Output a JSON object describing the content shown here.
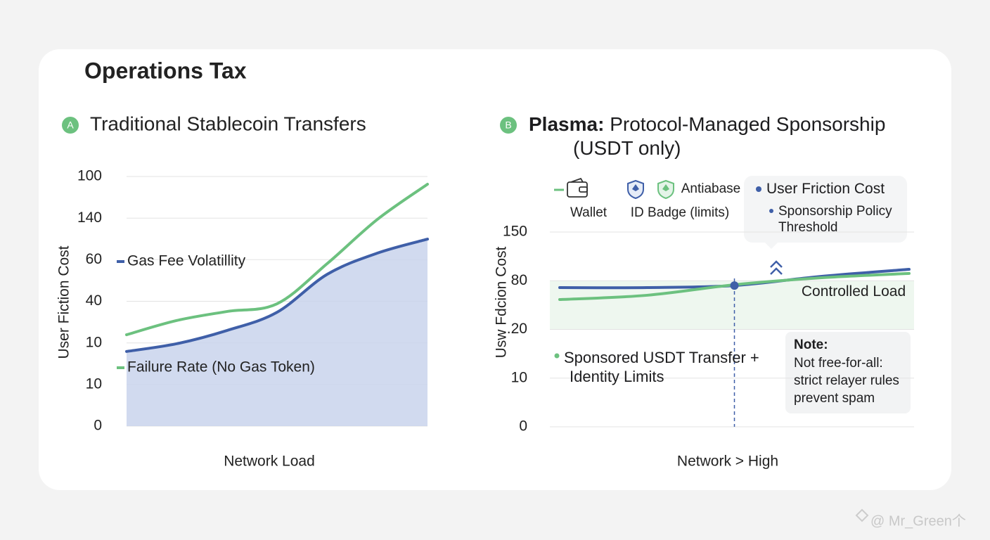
{
  "title": "Operations Tax",
  "watermark": "@ Mr_Green个",
  "chart_data": [
    {
      "type": "line",
      "badge": "A",
      "title": "Traditional Stablecoin Transfers",
      "ylabel": "User Fiction Cost",
      "xlabel": "Network Load",
      "categories": [
        null,
        null,
        null,
        null,
        null,
        null,
        null
      ],
      "ylim": [
        0,
        100
      ],
      "yticks": [
        100,
        {
          "value": 83.3,
          "label": "140"
        },
        {
          "value": 66.7,
          "label": "60"
        },
        {
          "value": 50,
          "label": "40"
        },
        {
          "value": 33.3,
          "label": "10"
        },
        {
          "value": 16.7,
          "label": "10"
        },
        0
      ],
      "grid": true,
      "series": [
        {
          "name": "Failure Rate (No Gas Token)",
          "color": "#6cc17f",
          "values": [
            36.6,
            42.3,
            45.9,
            49.0,
            65.1,
            82.8,
            96.9
          ]
        },
        {
          "name": "Gas Fee Volatillity",
          "color": "#3f5fa8",
          "area": true,
          "values": [
            29.9,
            33.0,
            38.3,
            45.6,
            60.8,
            69.3,
            74.9
          ]
        }
      ]
    },
    {
      "type": "line",
      "badge": "B",
      "title_bold": "Plasma:",
      "title": "Protocol-Managed Sponsorship (USDT only)",
      "ylabel": "Usw Fdcion Cost",
      "xlabel": "Network > High",
      "categories": [
        null,
        null,
        null,
        null,
        null
      ],
      "ylim": [
        0,
        150
      ],
      "yticks": [
        150,
        {
          "value": 112.5,
          "label": "80"
        },
        {
          "value": 75,
          "label": ".20"
        },
        {
          "value": 37.5,
          "label": "10"
        },
        0
      ],
      "grid": true,
      "legend_items": [
        "Wallet",
        "Antiabase",
        "ID Badge (limits)"
      ],
      "threshold_label": "Sponsorship Policy Threshold",
      "band_label": "Controlled Load",
      "note": {
        "title": "Note:",
        "text": "Not free-for-all: strict relayer rules prevent spam"
      },
      "series": [
        {
          "name": "User Friction Cost",
          "color": "#3f5fa8",
          "values": [
            107.2,
            107.2,
            108.8,
            115.9,
            121.3
          ]
        },
        {
          "name": "Sponsored USDT Transfer + Identity Limits",
          "color": "#6cc17f",
          "values": [
            98.0,
            101.3,
            109.4,
            114.8,
            118.1
          ]
        }
      ]
    }
  ]
}
